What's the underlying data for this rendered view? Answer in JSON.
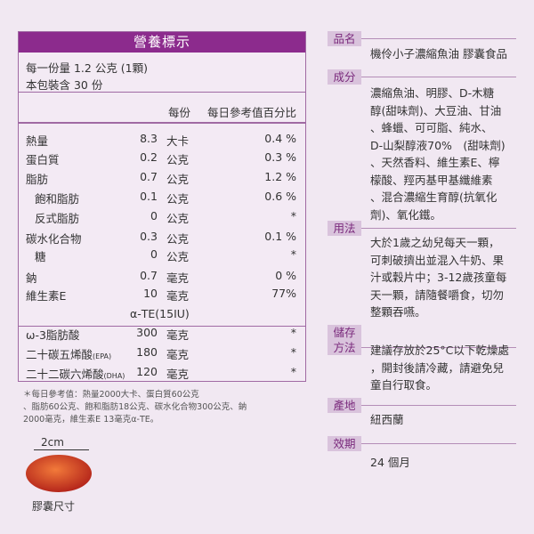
{
  "nutrition": {
    "title": "營養標示",
    "serving": "每一份量 1.2 公克 (1顆)",
    "servings_per_pack": "本包裝含 30 份",
    "col_per_serving": "每份",
    "col_daily": "每日參考值百分比",
    "rows": [
      {
        "name": "熱量",
        "value": "8.3",
        "unit": "大卡",
        "dv": "0.4 %"
      },
      {
        "name": "蛋白質",
        "value": "0.2",
        "unit": "公克",
        "dv": "0.3 %"
      },
      {
        "name": "脂肪",
        "value": "0.7",
        "unit": "公克",
        "dv": "1.2 %"
      },
      {
        "name": "飽和脂肪",
        "value": "0.1",
        "unit": "公克",
        "dv": "0.6 %"
      },
      {
        "name": "反式脂肪",
        "value": "0",
        "unit": "公克",
        "dv": "*"
      },
      {
        "name": "碳水化合物",
        "value": "0.3",
        "unit": "公克",
        "dv": "0.1 %"
      },
      {
        "name": "糖",
        "value": "0",
        "unit": "公克",
        "dv": "*"
      },
      {
        "name": "鈉",
        "value": "0.7",
        "unit": "毫克",
        "dv": "0 %"
      },
      {
        "name": "維生素E",
        "value": "10",
        "unit": "毫克",
        "dv": "77%"
      },
      {
        "extra": "α-TE(15IU)"
      },
      {
        "name": "ω-3脂肪酸",
        "value": "300",
        "unit": "毫克",
        "dv": "*"
      },
      {
        "name": "二十碳五烯酸",
        "note": "(EPA)",
        "value": "180",
        "unit": "毫克",
        "dv": "*"
      },
      {
        "name": "二十二碳六烯酸",
        "note": "(DHA)",
        "value": "120",
        "unit": "毫克",
        "dv": "*"
      }
    ]
  },
  "footnote": [
    "＊每日參考值：熱量2000大卡、蛋白質60公克",
    "、脂肪60公克、飽和脂肪18公克、碳水化合物300公克、鈉",
    "2000毫克，維生素E 13毫克α-TE。"
  ],
  "capsule": {
    "size": "2cm",
    "label": "膠囊尺寸"
  },
  "info": [
    {
      "label": [
        "品名"
      ],
      "text": [
        "機伶小子濃縮魚油 膠囊食品"
      ]
    },
    {
      "label": [
        "成分"
      ],
      "text": [
        "濃縮魚油、明膠、D-木糖",
        "醇(甜味劑)、大豆油、甘油",
        "、蜂蠟、可可脂、純水、",
        "D-山梨醇液70%　(甜味劑)",
        "、天然香料、維生素E、檸",
        "檬酸、羥丙基甲基纖維素",
        "、混合濃縮生育醇(抗氧化",
        "劑)、氧化鐵。"
      ]
    },
    {
      "label": [
        "用法"
      ],
      "text": [
        "大於1歲之幼兒每天一顆，",
        "可刺破擠出並混入牛奶、果",
        "汁或穀片中；3-12歲孩童每",
        "天一顆，請隨餐嚼食，切勿",
        "整顆吞嚥。"
      ]
    },
    {
      "label": [
        "儲存",
        "方法"
      ],
      "text": [
        "建議存放於25°C以下乾燥處",
        "，開封後請冷藏，請避免兒",
        "童自行取食。"
      ]
    },
    {
      "label": [
        "產地"
      ],
      "text": [
        "紐西蘭"
      ]
    },
    {
      "label": [
        "效期"
      ],
      "text": [
        "24 個月"
      ]
    }
  ]
}
